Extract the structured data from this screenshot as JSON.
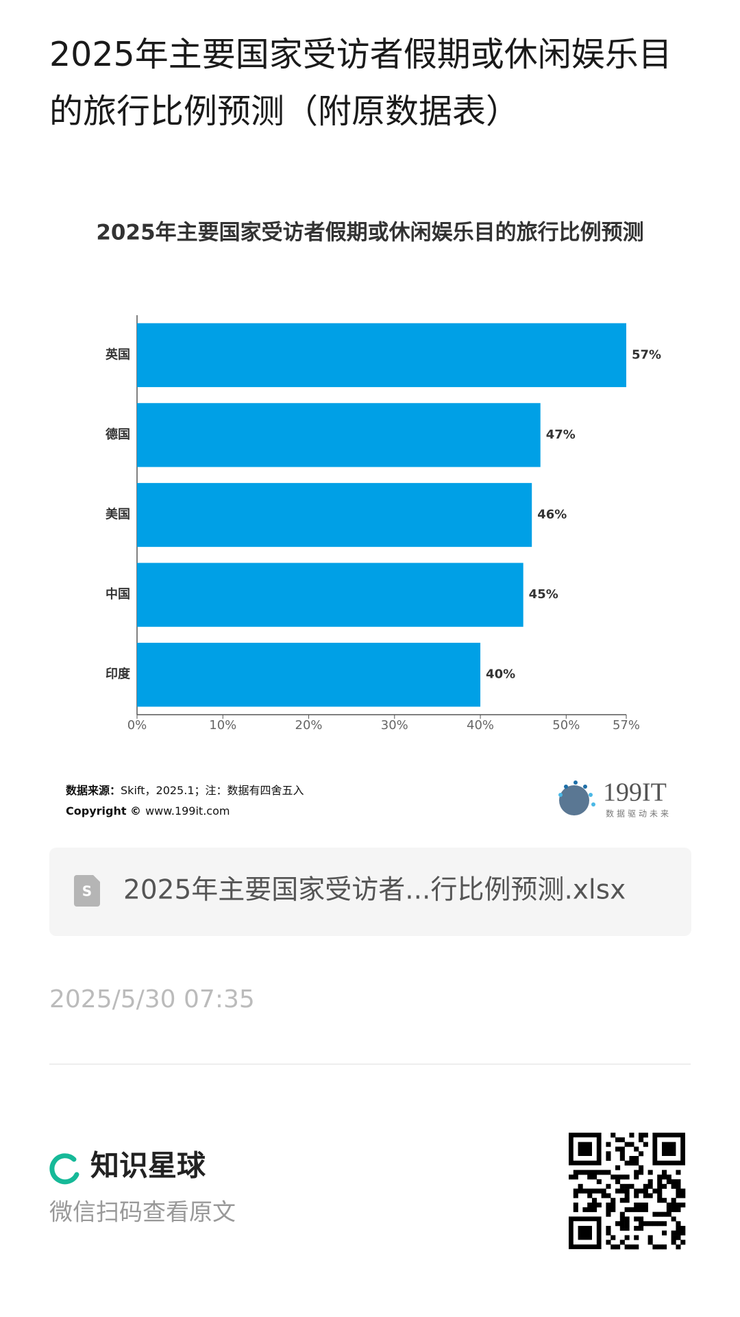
{
  "header": {
    "title": "2025年主要国家受访者假期或休闲娱乐目的旅行比例预测（附原数据表）"
  },
  "chart_data": {
    "type": "bar",
    "orientation": "horizontal",
    "title": "2025年主要国家受访者假期或休闲娱乐目的旅行比例预测",
    "categories": [
      "英国",
      "德国",
      "美国",
      "中国",
      "印度"
    ],
    "values": [
      57,
      47,
      46,
      45,
      40
    ],
    "value_labels": [
      "57%",
      "47%",
      "46%",
      "45%",
      "40%"
    ],
    "color": "#00a0e6",
    "xlim": [
      0,
      57
    ],
    "xticks": [
      {
        "value": 0,
        "label": "0%"
      },
      {
        "value": 10,
        "label": "10%"
      },
      {
        "value": 20,
        "label": "20%"
      },
      {
        "value": 30,
        "label": "30%"
      },
      {
        "value": 40,
        "label": "40%"
      },
      {
        "value": 50,
        "label": "50%"
      },
      {
        "value": 57,
        "label": "57%"
      }
    ],
    "grid": false
  },
  "source": {
    "label": "数据来源：",
    "text": "Skift，2025.1；注：数据有四舍五入",
    "copyright_label": "Copyright ©",
    "copyright_text": "www.199it.com"
  },
  "logo": {
    "name": "199IT",
    "tagline": "数据驱动未来"
  },
  "attachment": {
    "filename": "2025年主要国家受访者...行比例预测.xlsx"
  },
  "date": "2025/5/30 07:35",
  "footer": {
    "brand": "知识星球",
    "hint": "微信扫码查看原文"
  }
}
